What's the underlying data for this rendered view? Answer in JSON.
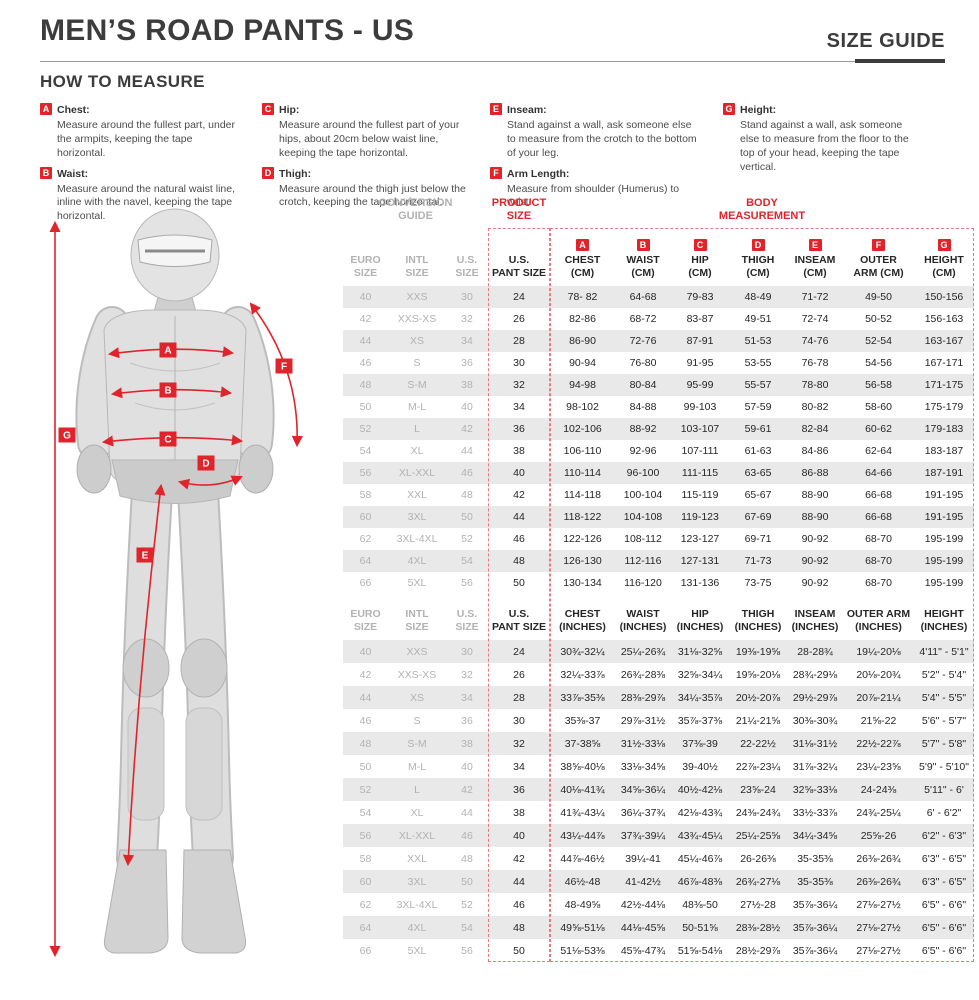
{
  "page": {
    "title": "MEN’S ROAD PANTS - US",
    "size_guide_label": "SIZE GUIDE"
  },
  "accent_color": "#e0242b",
  "how_to_measure": {
    "heading": "HOW TO MEASURE",
    "columns": [
      [
        0,
        1
      ],
      [
        2,
        3
      ],
      [
        4,
        5
      ],
      [
        6
      ]
    ],
    "items": [
      {
        "letter": "A",
        "label": "Chest:",
        "text": "Measure around the fullest part, under the armpits, keeping the tape horizontal."
      },
      {
        "letter": "B",
        "label": "Waist:",
        "text": "Measure around the natural waist line, inline with the navel, keeping the tape horizontal."
      },
      {
        "letter": "C",
        "label": "Hip:",
        "text": "Measure around the fullest part of your hips, about 20cm below waist line, keeping the tape horizontal."
      },
      {
        "letter": "D",
        "label": "Thigh:",
        "text": "Measure around the thigh just below the crotch, keeping the tape horizontal."
      },
      {
        "letter": "E",
        "label": "Inseam:",
        "text": "Stand against a wall, ask someone else to measure from the crotch to the bottom of your leg."
      },
      {
        "letter": "F",
        "label": "Arm Length:",
        "text": "Measure from shoulder (Humerus) to wrist."
      },
      {
        "letter": "G",
        "label": "Height:",
        "text": "Stand against a wall, ask someone else to measure from the floor to the top of your head, keeping the tape vertical."
      }
    ]
  },
  "figure": {
    "badges": [
      "A",
      "B",
      "C",
      "D",
      "E",
      "F",
      "G"
    ]
  },
  "table": {
    "conversion_guide_label": "CONVERSION\nGUIDE",
    "product_size_label": "PRODUCT\nSIZE",
    "body_measurement_label": "BODY\nMEASUREMENT",
    "conversion_headers": [
      "EURO\nSIZE",
      "INTL\nSIZE",
      "U.S.\nSIZE"
    ],
    "pant_header": "U.S.\nPANT SIZE",
    "sections": [
      {
        "unit": "cm",
        "letters": [
          "A",
          "B",
          "C",
          "D",
          "E",
          "F",
          "G"
        ],
        "measurement_headers": [
          "CHEST\n(CM)",
          "WAIST\n(CM)",
          "HIP\n(CM)",
          "THIGH\n(CM)",
          "INSEAM\n(CM)",
          "OUTER\nARM (CM)",
          "HEIGHT\n(CM)"
        ],
        "rows": [
          {
            "euro": "40",
            "intl": "XXS",
            "us": "30",
            "pant": "24",
            "values": [
              "78- 82",
              "64-68",
              "79-83",
              "48-49",
              "71-72",
              "49-50",
              "150-156"
            ]
          },
          {
            "euro": "42",
            "intl": "XXS-XS",
            "us": "32",
            "pant": "26",
            "values": [
              "82-86",
              "68-72",
              "83-87",
              "49-51",
              "72-74",
              "50-52",
              "156-163"
            ]
          },
          {
            "euro": "44",
            "intl": "XS",
            "us": "34",
            "pant": "28",
            "values": [
              "86-90",
              "72-76",
              "87-91",
              "51-53",
              "74-76",
              "52-54",
              "163-167"
            ]
          },
          {
            "euro": "46",
            "intl": "S",
            "us": "36",
            "pant": "30",
            "values": [
              "90-94",
              "76-80",
              "91-95",
              "53-55",
              "76-78",
              "54-56",
              "167-171"
            ]
          },
          {
            "euro": "48",
            "intl": "S-M",
            "us": "38",
            "pant": "32",
            "values": [
              "94-98",
              "80-84",
              "95-99",
              "55-57",
              "78-80",
              "56-58",
              "171-175"
            ]
          },
          {
            "euro": "50",
            "intl": "M-L",
            "us": "40",
            "pant": "34",
            "values": [
              "98-102",
              "84-88",
              "99-103",
              "57-59",
              "80-82",
              "58-60",
              "175-179"
            ]
          },
          {
            "euro": "52",
            "intl": "L",
            "us": "42",
            "pant": "36",
            "values": [
              "102-106",
              "88-92",
              "103-107",
              "59-61",
              "82-84",
              "60-62",
              "179-183"
            ]
          },
          {
            "euro": "54",
            "intl": "XL",
            "us": "44",
            "pant": "38",
            "values": [
              "106-110",
              "92-96",
              "107-111",
              "61-63",
              "84-86",
              "62-64",
              "183-187"
            ]
          },
          {
            "euro": "56",
            "intl": "XL-XXL",
            "us": "46",
            "pant": "40",
            "values": [
              "110-114",
              "96-100",
              "111-115",
              "63-65",
              "86-88",
              "64-66",
              "187-191"
            ]
          },
          {
            "euro": "58",
            "intl": "XXL",
            "us": "48",
            "pant": "42",
            "values": [
              "114-118",
              "100-104",
              "115-119",
              "65-67",
              "88-90",
              "66-68",
              "191-195"
            ]
          },
          {
            "euro": "60",
            "intl": "3XL",
            "us": "50",
            "pant": "44",
            "values": [
              "118-122",
              "104-108",
              "119-123",
              "67-69",
              "88-90",
              "66-68",
              "191-195"
            ]
          },
          {
            "euro": "62",
            "intl": "3XL-4XL",
            "us": "52",
            "pant": "46",
            "values": [
              "122-126",
              "108-112",
              "123-127",
              "69-71",
              "90-92",
              "68-70",
              "195-199"
            ]
          },
          {
            "euro": "64",
            "intl": "4XL",
            "us": "54",
            "pant": "48",
            "values": [
              "126-130",
              "112-116",
              "127-131",
              "71-73",
              "90-92",
              "68-70",
              "195-199"
            ]
          },
          {
            "euro": "66",
            "intl": "5XL",
            "us": "56",
            "pant": "50",
            "values": [
              "130-134",
              "116-120",
              "131-136",
              "73-75",
              "90-92",
              "68-70",
              "195-199"
            ]
          }
        ]
      },
      {
        "unit": "inches",
        "letters": null,
        "measurement_headers": [
          "CHEST\n(INCHES)",
          "WAIST\n(INCHES)",
          "HIP\n(INCHES)",
          "THIGH\n(INCHES)",
          "INSEAM\n(INCHES)",
          "OUTER ARM\n(INCHES)",
          "HEIGHT\n(INCHES)"
        ],
        "rows": [
          {
            "euro": "40",
            "intl": "XXS",
            "us": "30",
            "pant": "24",
            "values": [
              "30¾-32¼",
              "25¼-26¾",
              "31⅛-32⅝",
              "19⅜-19⅝",
              "28-28¾",
              "19¼-20⅛",
              "4'11\" - 5'1\""
            ]
          },
          {
            "euro": "42",
            "intl": "XXS-XS",
            "us": "32",
            "pant": "26",
            "values": [
              "32¼-33⅞",
              "26¾-28⅜",
              "32⅝-34¼",
              "19⅝-20⅛",
              "28¾-29⅛",
              "20⅛-20¾",
              "5'2\" - 5'4\""
            ]
          },
          {
            "euro": "44",
            "intl": "XS",
            "us": "34",
            "pant": "28",
            "values": [
              "33⅞-35⅜",
              "28⅜-29⅞",
              "34¼-35⅞",
              "20½-20⅞",
              "29½-29⅞",
              "20⅞-21¼",
              "5'4\" - 5'5\""
            ]
          },
          {
            "euro": "46",
            "intl": "S",
            "us": "36",
            "pant": "30",
            "values": [
              "35⅜-37",
              "29⅞-31½",
              "35⅞-37⅜",
              "21¼-21⅝",
              "30⅜-30¾",
              "21⅝-22",
              "5'6\" - 5'7\""
            ]
          },
          {
            "euro": "48",
            "intl": "S-M",
            "us": "38",
            "pant": "32",
            "values": [
              "37-38⅝",
              "31½-33⅛",
              "37⅜-39",
              "22-22½",
              "31⅛-31½",
              "22½-22⅞",
              "5'7\" - 5'8\""
            ]
          },
          {
            "euro": "50",
            "intl": "M-L",
            "us": "40",
            "pant": "34",
            "values": [
              "38⅝-40⅛",
              "33⅛-34⅝",
              "39-40½",
              "22⅞-23¼",
              "31⅞-32¼",
              "23¼-23⅝",
              "5'9\" - 5'10\""
            ]
          },
          {
            "euro": "52",
            "intl": "L",
            "us": "42",
            "pant": "36",
            "values": [
              "40⅛-41¾",
              "34⅝-36¼",
              "40½-42⅛",
              "23⅝-24",
              "32⅝-33⅛",
              "24-24⅜",
              "5'11\" - 6'"
            ]
          },
          {
            "euro": "54",
            "intl": "XL",
            "us": "44",
            "pant": "38",
            "values": [
              "41¾-43¼",
              "36¼-37¾",
              "42⅛-43¾",
              "24⅜-24¾",
              "33½-33⅞",
              "24¾-25¼",
              "6' - 6'2\""
            ]
          },
          {
            "euro": "56",
            "intl": "XL-XXL",
            "us": "46",
            "pant": "40",
            "values": [
              "43¼-44⅞",
              "37¾-39¼",
              "43¾-45¼",
              "25¼-25⅝",
              "34¼-34⅝",
              "25⅝-26",
              "6'2\" - 6'3\""
            ]
          },
          {
            "euro": "58",
            "intl": "XXL",
            "us": "48",
            "pant": "42",
            "values": [
              "44⅞-46½",
              "39¼-41",
              "45¼-46⅞",
              "26-26⅜",
              "35-35⅜",
              "26⅜-26¾",
              "6'3\" - 6'5\""
            ]
          },
          {
            "euro": "60",
            "intl": "3XL",
            "us": "50",
            "pant": "44",
            "values": [
              "46½-48",
              "41-42½",
              "46⅞-48⅜",
              "26¾-27⅛",
              "35-35⅜",
              "26⅜-26¾",
              "6'3\" - 6'5\""
            ]
          },
          {
            "euro": "62",
            "intl": "3XL-4XL",
            "us": "52",
            "pant": "46",
            "values": [
              "48-49⅝",
              "42½-44⅛",
              "48⅜-50",
              "27½-28",
              "35⅞-36¼",
              "27⅛-27½",
              "6'5\" - 6'6\""
            ]
          },
          {
            "euro": "64",
            "intl": "4XL",
            "us": "54",
            "pant": "48",
            "values": [
              "49⅝-51⅛",
              "44⅛-45⅝",
              "50-51⅝",
              "28⅜-28½",
              "35⅞-36¼",
              "27⅛-27½",
              "6'5\" - 6'6\""
            ]
          },
          {
            "euro": "66",
            "intl": "5XL",
            "us": "56",
            "pant": "50",
            "values": [
              "51⅛-53⅜",
              "45⅝-47¾",
              "51⅝-54⅛",
              "28½-29⅞",
              "35⅞-36¼",
              "27⅛-27½",
              "6'5\" - 6'6\""
            ]
          }
        ]
      }
    ]
  }
}
